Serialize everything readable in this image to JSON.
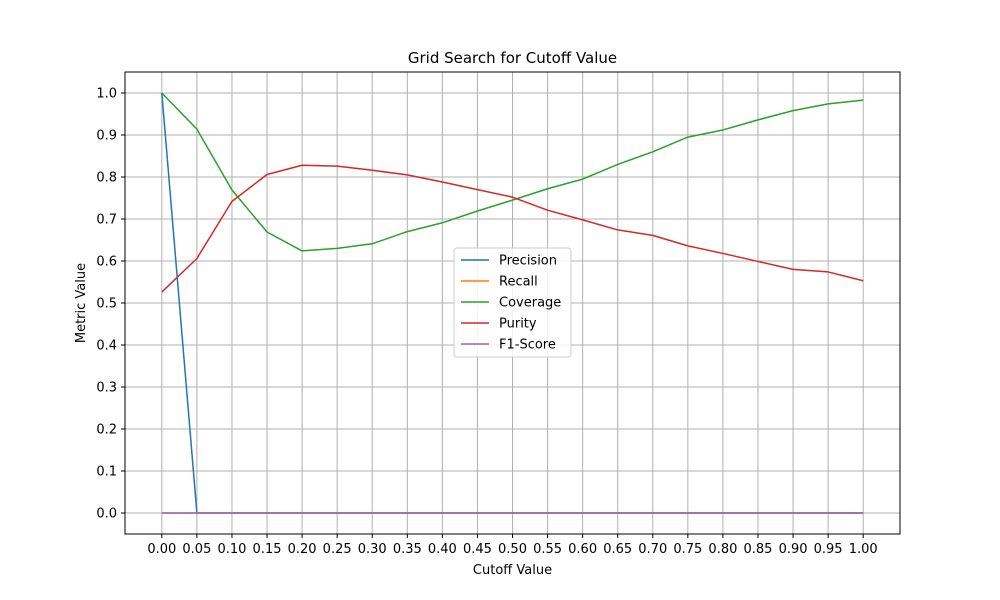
{
  "chart_data": {
    "type": "line",
    "title": "Grid Search for Cutoff Value",
    "xlabel": "Cutoff Value",
    "ylabel": "Metric Value",
    "x": [
      0.0,
      0.05,
      0.1,
      0.15,
      0.2,
      0.25,
      0.3,
      0.35,
      0.4,
      0.45,
      0.5,
      0.55,
      0.6,
      0.65,
      0.7,
      0.75,
      0.8,
      0.85,
      0.9,
      0.95,
      1.0
    ],
    "xticks": [
      "0.00",
      "0.05",
      "0.10",
      "0.15",
      "0.20",
      "0.25",
      "0.30",
      "0.35",
      "0.40",
      "0.45",
      "0.50",
      "0.55",
      "0.60",
      "0.65",
      "0.70",
      "0.75",
      "0.80",
      "0.85",
      "0.90",
      "0.95",
      "1.00"
    ],
    "yticks": [
      "0.0",
      "0.1",
      "0.2",
      "0.3",
      "0.4",
      "0.5",
      "0.6",
      "0.7",
      "0.8",
      "0.9",
      "1.0"
    ],
    "ytick_values": [
      0.0,
      0.1,
      0.2,
      0.3,
      0.4,
      0.5,
      0.6,
      0.7,
      0.8,
      0.9,
      1.0
    ],
    "xlim": [
      -0.0525,
      1.0525
    ],
    "ylim": [
      -0.05,
      1.05
    ],
    "grid": true,
    "legend_position": "center",
    "series": [
      {
        "name": "Precision",
        "color": "#1f77b4",
        "values": [
          1.0,
          0.0,
          0.0,
          0.0,
          0.0,
          0.0,
          0.0,
          0.0,
          0.0,
          0.0,
          0.0,
          0.0,
          0.0,
          0.0,
          0.0,
          0.0,
          0.0,
          0.0,
          0.0,
          0.0,
          0.0
        ]
      },
      {
        "name": "Recall",
        "color": "#ff7f0e",
        "values": [
          0.0,
          0.0,
          0.0,
          0.0,
          0.0,
          0.0,
          0.0,
          0.0,
          0.0,
          0.0,
          0.0,
          0.0,
          0.0,
          0.0,
          0.0,
          0.0,
          0.0,
          0.0,
          0.0,
          0.0,
          0.0
        ]
      },
      {
        "name": "Coverage",
        "color": "#2ca02c",
        "values": [
          1.0,
          0.914,
          0.769,
          0.669,
          0.624,
          0.63,
          0.641,
          0.67,
          0.691,
          0.719,
          0.745,
          0.772,
          0.795,
          0.83,
          0.86,
          0.895,
          0.912,
          0.936,
          0.958,
          0.974,
          0.983
        ]
      },
      {
        "name": "Purity",
        "color": "#d62728",
        "values": [
          0.526,
          0.606,
          0.742,
          0.806,
          0.828,
          0.826,
          0.816,
          0.805,
          0.788,
          0.77,
          0.752,
          0.721,
          0.698,
          0.674,
          0.661,
          0.636,
          0.618,
          0.599,
          0.58,
          0.574,
          0.553
        ]
      },
      {
        "name": "F1-Score",
        "color": "#9467bd",
        "values": [
          0.0,
          0.0,
          0.0,
          0.0,
          0.0,
          0.0,
          0.0,
          0.0,
          0.0,
          0.0,
          0.0,
          0.0,
          0.0,
          0.0,
          0.0,
          0.0,
          0.0,
          0.0,
          0.0,
          0.0,
          0.0
        ]
      }
    ]
  }
}
